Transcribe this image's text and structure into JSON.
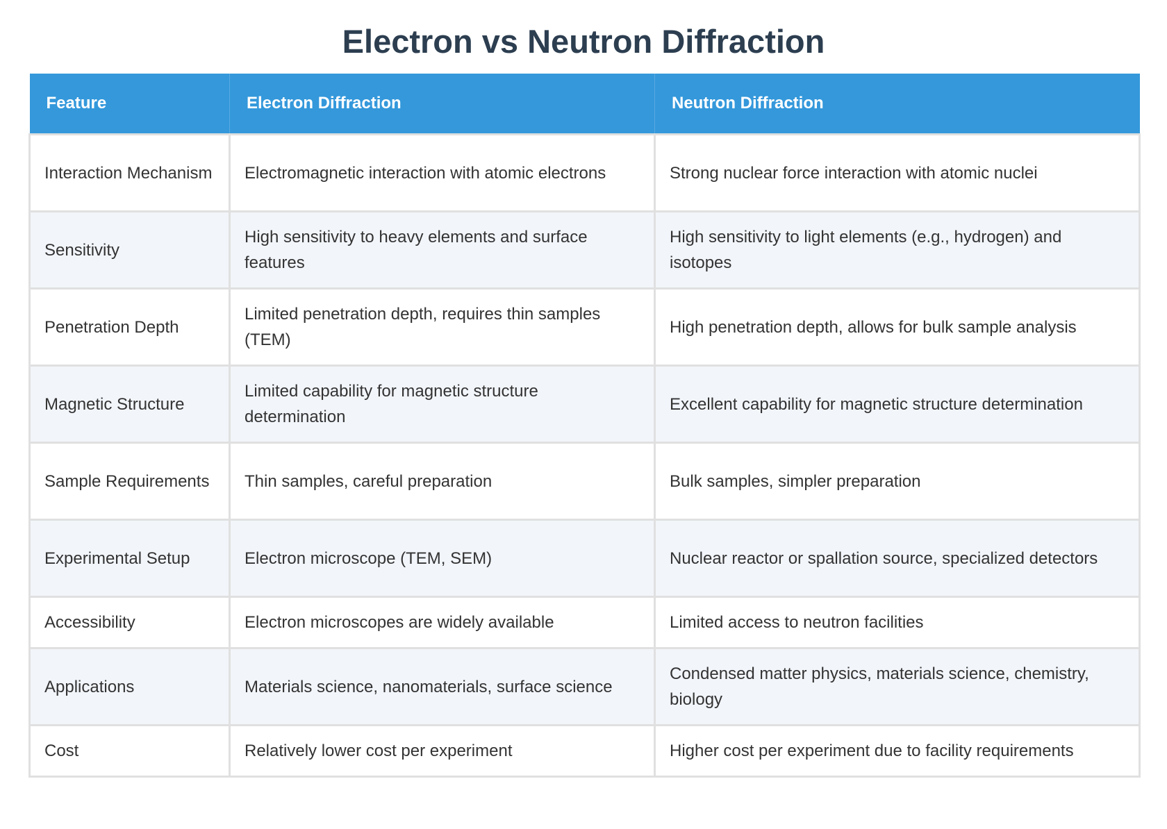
{
  "title": "Electron vs Neutron Diffraction",
  "table": {
    "headers": [
      "Feature",
      "Electron Diffraction",
      "Neutron Diffraction"
    ],
    "rows": [
      [
        "Interaction Mechanism",
        "Electromagnetic interaction with atomic electrons",
        "Strong nuclear force interaction with atomic nuclei"
      ],
      [
        "Sensitivity",
        "High sensitivity to heavy elements and surface features",
        "High sensitivity to light elements (e.g., hydrogen) and isotopes"
      ],
      [
        "Penetration Depth",
        "Limited penetration depth, requires thin samples (TEM)",
        "High penetration depth, allows for bulk sample analysis"
      ],
      [
        "Magnetic Structure",
        "Limited capability for magnetic structure determination",
        "Excellent capability for magnetic structure determination"
      ],
      [
        "Sample Requirements",
        "Thin samples, careful preparation",
        "Bulk samples, simpler preparation"
      ],
      [
        "Experimental Setup",
        "Electron microscope (TEM, SEM)",
        "Nuclear reactor or spallation source, specialized detectors"
      ],
      [
        "Accessibility",
        "Electron microscopes are widely available",
        "Limited access to neutron facilities"
      ],
      [
        "Applications",
        "Materials science, nanomaterials, surface science",
        "Condensed matter physics, materials science, chemistry, biology"
      ],
      [
        "Cost",
        "Relatively lower cost per experiment",
        "Higher cost per experiment due to facility requirements"
      ]
    ]
  },
  "colors": {
    "header_bg": "#3498db",
    "title": "#2c3e50",
    "alt_row": "#f2f5fa"
  }
}
